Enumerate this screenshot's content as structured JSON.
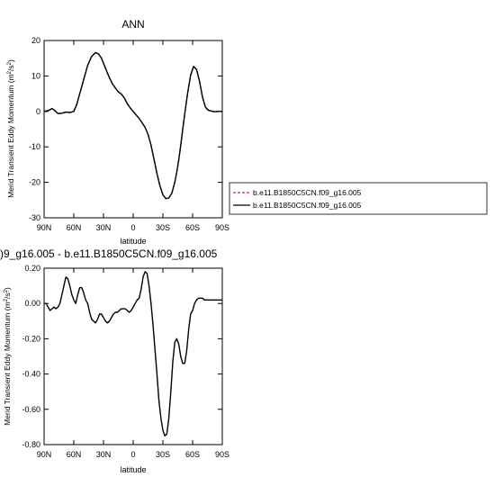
{
  "chart_data": [
    {
      "type": "line",
      "title": "ANN",
      "xlabel": "latitude",
      "ylabel": "Merid Transient Eddy Momentum (m²/s²)",
      "ylabel_base": "Merid Transient Eddy Momentum (m",
      "ylabel_exp1": "2",
      "ylabel_mid": "/s",
      "ylabel_exp2": "2",
      "ylabel_end": ")",
      "xlim": [
        90,
        -90
      ],
      "ylim": [
        -30,
        20
      ],
      "x_tick_values": [
        90,
        60,
        30,
        0,
        -30,
        -60,
        -90
      ],
      "x_tick_labels": [
        "90N",
        "60N",
        "30N",
        "0",
        "30S",
        "60S",
        "90S"
      ],
      "y_tick_values": [
        20,
        10,
        0,
        -10,
        -20,
        -30
      ],
      "y_tick_labels": [
        "20",
        "10",
        "0",
        "-10",
        "-20",
        "-30"
      ],
      "grid": false,
      "legend": {
        "placement": "right",
        "entries": [
          {
            "label": "b.e11.B1850C5CN.f09_g16.005",
            "color": "#d62728",
            "dash": "dashed"
          },
          {
            "label": "b.e11.B1850C5CN.f09_g16.005",
            "color": "#000000",
            "dash": "solid"
          }
        ]
      },
      "series": [
        {
          "color": "#d62728",
          "dash": "dashed",
          "x": [
            90,
            86,
            82,
            79,
            76,
            72,
            68,
            64,
            60,
            57,
            54,
            50,
            46,
            42,
            38,
            35,
            32,
            30,
            27,
            24,
            21,
            18,
            15,
            12,
            9,
            6,
            3,
            0,
            -3,
            -6,
            -9,
            -12,
            -15,
            -18,
            -21,
            -24,
            -27,
            -30,
            -33,
            -36,
            -39,
            -42,
            -44,
            -46,
            -48,
            -50,
            -52,
            -55,
            -58,
            -61,
            -64,
            -67,
            -70,
            -73,
            -76,
            -79,
            -82,
            -85,
            -88,
            -90
          ],
          "y": [
            0,
            0.2,
            0.8,
            0.2,
            -0.6,
            -0.5,
            -0.2,
            -0.3,
            0,
            2,
            5,
            9,
            13,
            15.5,
            16.6,
            16.2,
            15,
            13.6,
            11.5,
            9.5,
            7.8,
            6.6,
            5.5,
            4.9,
            3.8,
            2.2,
            1,
            0,
            -1,
            -2,
            -3.2,
            -4.5,
            -6.5,
            -9.5,
            -13.5,
            -17.5,
            -21,
            -23.5,
            -24.6,
            -24.4,
            -23.1,
            -20,
            -17.1,
            -13.7,
            -9.6,
            -5.1,
            -0.8,
            5.2,
            10.2,
            12.7,
            11.8,
            8.5,
            4,
            1.2,
            0.3,
            0.1,
            -0.1,
            0,
            0,
            0
          ]
        },
        {
          "color": "#000000",
          "dash": "solid",
          "x": [
            90,
            86,
            82,
            79,
            76,
            72,
            68,
            64,
            60,
            57,
            54,
            50,
            46,
            42,
            38,
            35,
            32,
            30,
            27,
            24,
            21,
            18,
            15,
            12,
            9,
            6,
            3,
            0,
            -3,
            -6,
            -9,
            -12,
            -15,
            -18,
            -21,
            -24,
            -27,
            -30,
            -33,
            -36,
            -39,
            -42,
            -44,
            -46,
            -48,
            -50,
            -52,
            -55,
            -58,
            -61,
            -64,
            -67,
            -70,
            -73,
            -76,
            -79,
            -82,
            -85,
            -88,
            -90
          ],
          "y": [
            0,
            0.2,
            0.8,
            0.2,
            -0.6,
            -0.5,
            -0.2,
            -0.3,
            0,
            2,
            5,
            9,
            13,
            15.5,
            16.6,
            16.2,
            15,
            13.6,
            11.5,
            9.5,
            7.8,
            6.6,
            5.5,
            4.9,
            3.8,
            2.2,
            1,
            0,
            -1,
            -2,
            -3.2,
            -4.5,
            -6.5,
            -9.5,
            -13.5,
            -17.5,
            -21,
            -23.5,
            -24.6,
            -24.4,
            -23.1,
            -20,
            -17.1,
            -13.7,
            -9.6,
            -5.1,
            -0.8,
            5.2,
            10.2,
            12.7,
            11.8,
            8.5,
            4,
            1.2,
            0.3,
            0.1,
            -0.1,
            0,
            0,
            0
          ]
        }
      ]
    },
    {
      "type": "line",
      "title": ")9_g16.005 - b.e11.B1850C5CN.f09_g16.005",
      "xlabel": "latitude",
      "ylabel": "Merid Transient Eddy Momentum (m²/s²)",
      "ylabel_base": "Merid Transient Eddy Momentum (m",
      "ylabel_exp1": "2",
      "ylabel_mid": "/s",
      "ylabel_exp2": "2",
      "ylabel_end": ")",
      "xlim": [
        90,
        -90
      ],
      "ylim": [
        -0.8,
        0.2
      ],
      "x_tick_values": [
        90,
        60,
        30,
        0,
        -30,
        -60,
        -90
      ],
      "x_tick_labels": [
        "90N",
        "60N",
        "30N",
        "0",
        "30S",
        "60S",
        "90S"
      ],
      "y_tick_values": [
        0.2,
        0,
        -0.2,
        -0.4,
        -0.6,
        -0.8
      ],
      "y_tick_labels": [
        "0.20",
        "0.00",
        "-0.20",
        "-0.40",
        "-0.60",
        "-0.80"
      ],
      "grid": false,
      "series": [
        {
          "color": "#000000",
          "dash": "solid",
          "x": [
            90,
            88,
            86,
            84,
            82,
            80,
            78,
            76,
            74,
            72,
            70,
            68,
            66,
            64,
            62,
            60,
            58,
            56,
            54,
            52,
            50,
            48,
            46,
            44,
            42,
            40,
            38,
            36,
            34,
            32,
            30,
            28,
            26,
            24,
            22,
            20,
            18,
            16,
            14,
            12,
            10,
            8,
            6,
            4,
            2,
            0,
            -2,
            -4,
            -6,
            -8,
            -10,
            -12,
            -14,
            -16,
            -18,
            -20,
            -22,
            -24,
            -26,
            -28,
            -30,
            -32,
            -34,
            -36,
            -38,
            -40,
            -42,
            -44,
            -46,
            -48,
            -50,
            -52,
            -54,
            -56,
            -58,
            -60,
            -62,
            -64,
            -66,
            -68,
            -70,
            -72,
            -74,
            -76,
            -78,
            -80,
            -82,
            -84,
            -86,
            -88,
            -90
          ],
          "y": [
            0,
            0,
            -0.02,
            -0.04,
            -0.03,
            -0.02,
            -0.03,
            -0.02,
            0,
            0.05,
            0.1,
            0.15,
            0.14,
            0.1,
            0.05,
            0.02,
            0,
            0.05,
            0.09,
            0.09,
            0.06,
            0.02,
            0,
            -0.05,
            -0.09,
            -0.1,
            -0.11,
            -0.09,
            -0.06,
            -0.06,
            -0.08,
            -0.1,
            -0.11,
            -0.1,
            -0.08,
            -0.06,
            -0.05,
            -0.05,
            -0.04,
            -0.03,
            -0.03,
            -0.03,
            -0.04,
            -0.05,
            -0.04,
            -0.02,
            0,
            0.02,
            0.03,
            0.08,
            0.15,
            0.18,
            0.17,
            0.1,
            0,
            -0.12,
            -0.26,
            -0.4,
            -0.55,
            -0.65,
            -0.72,
            -0.75,
            -0.74,
            -0.65,
            -0.5,
            -0.33,
            -0.22,
            -0.2,
            -0.23,
            -0.3,
            -0.34,
            -0.34,
            -0.27,
            -0.15,
            -0.06,
            -0.04,
            0,
            0.02,
            0.03,
            0.03,
            0.03,
            0.02,
            0.02,
            0.02,
            0.02,
            0.02,
            0.02,
            0.02,
            0.02,
            0.02,
            0.02
          ]
        }
      ]
    }
  ]
}
